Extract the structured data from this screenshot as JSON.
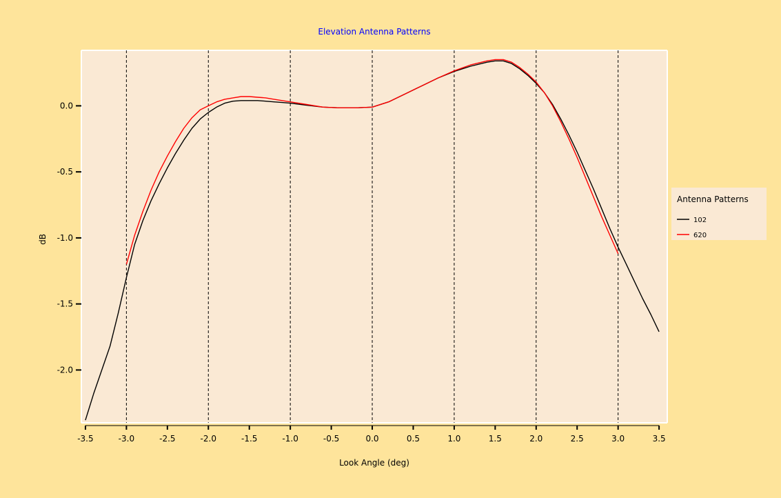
{
  "chart_data": {
    "type": "line",
    "title": "Elevation Antenna Patterns",
    "xlabel": "Look Angle (deg)",
    "ylabel": "dB",
    "xlim": [
      -3.55,
      3.6
    ],
    "ylim": [
      -2.4,
      0.42
    ],
    "xticks": [
      -3.5,
      -3.0,
      -2.5,
      -2.0,
      -1.5,
      -1.0,
      -0.5,
      0.0,
      0.5,
      1.0,
      1.5,
      2.0,
      2.5,
      3.0,
      3.5
    ],
    "xtick_labels": [
      "-3.5",
      "-3.0",
      "-2.5",
      "-2.0",
      "-1.5",
      "-1.0",
      "-0.5",
      "0.0",
      "0.5",
      "1.0",
      "1.5",
      "2.0",
      "2.5",
      "3.0",
      "3.5"
    ],
    "yticks": [
      0.0,
      -0.5,
      -1.0,
      -1.5,
      -2.0
    ],
    "ytick_labels": [
      "0.0",
      "-0.5",
      "-1.0",
      "-1.5",
      "-2.0"
    ],
    "vlines": [
      -3.0,
      -2.0,
      -1.0,
      0.0,
      1.0,
      2.0,
      3.0
    ],
    "grid": false,
    "legend": {
      "title": "Antenna Patterns",
      "placement": "right"
    },
    "series": [
      {
        "name": "102",
        "color": "#000000",
        "x": [
          -3.5,
          -3.4,
          -3.3,
          -3.2,
          -3.1,
          -3.0,
          -2.9,
          -2.8,
          -2.7,
          -2.6,
          -2.5,
          -2.4,
          -2.3,
          -2.2,
          -2.1,
          -2.0,
          -1.9,
          -1.8,
          -1.7,
          -1.6,
          -1.5,
          -1.4,
          -1.3,
          -1.2,
          -1.1,
          -1.0,
          -0.8,
          -0.6,
          -0.4,
          -0.2,
          0.0,
          0.2,
          0.4,
          0.6,
          0.8,
          1.0,
          1.2,
          1.4,
          1.5,
          1.6,
          1.7,
          1.8,
          1.9,
          2.0,
          2.1,
          2.2,
          2.3,
          2.4,
          2.5,
          2.6,
          2.7,
          2.8,
          2.9,
          3.0,
          3.1,
          3.2,
          3.3,
          3.4,
          3.5
        ],
        "y": [
          -2.38,
          -2.18,
          -2.0,
          -1.82,
          -1.57,
          -1.3,
          -1.05,
          -0.87,
          -0.72,
          -0.59,
          -0.47,
          -0.36,
          -0.26,
          -0.17,
          -0.1,
          -0.05,
          -0.01,
          0.02,
          0.035,
          0.04,
          0.04,
          0.04,
          0.035,
          0.03,
          0.025,
          0.02,
          0.005,
          -0.01,
          -0.015,
          -0.015,
          -0.01,
          0.03,
          0.09,
          0.15,
          0.21,
          0.26,
          0.3,
          0.33,
          0.34,
          0.34,
          0.32,
          0.28,
          0.23,
          0.17,
          0.1,
          0.01,
          -0.1,
          -0.22,
          -0.35,
          -0.49,
          -0.63,
          -0.78,
          -0.93,
          -1.07,
          -1.2,
          -1.33,
          -1.46,
          -1.58,
          -1.71
        ]
      },
      {
        "name": "620",
        "color": "#ff0000",
        "x": [
          -3.0,
          -2.9,
          -2.8,
          -2.7,
          -2.6,
          -2.5,
          -2.4,
          -2.3,
          -2.2,
          -2.1,
          -2.0,
          -1.9,
          -1.8,
          -1.7,
          -1.6,
          -1.5,
          -1.4,
          -1.3,
          -1.2,
          -1.1,
          -1.0,
          -0.8,
          -0.6,
          -0.4,
          -0.2,
          0.0,
          0.2,
          0.4,
          0.6,
          0.8,
          1.0,
          1.2,
          1.4,
          1.5,
          1.6,
          1.7,
          1.8,
          1.9,
          2.0,
          2.1,
          2.2,
          2.3,
          2.4,
          2.5,
          2.6,
          2.7,
          2.8,
          2.9,
          3.0
        ],
        "y": [
          -1.2,
          -0.98,
          -0.8,
          -0.64,
          -0.5,
          -0.38,
          -0.27,
          -0.17,
          -0.09,
          -0.03,
          0.0,
          0.03,
          0.05,
          0.06,
          0.07,
          0.07,
          0.065,
          0.06,
          0.05,
          0.04,
          0.03,
          0.01,
          -0.01,
          -0.015,
          -0.015,
          -0.01,
          0.03,
          0.09,
          0.15,
          0.21,
          0.265,
          0.31,
          0.34,
          0.35,
          0.35,
          0.33,
          0.29,
          0.24,
          0.18,
          0.1,
          0.0,
          -0.12,
          -0.25,
          -0.39,
          -0.54,
          -0.69,
          -0.84,
          -0.98,
          -1.12
        ]
      }
    ]
  }
}
